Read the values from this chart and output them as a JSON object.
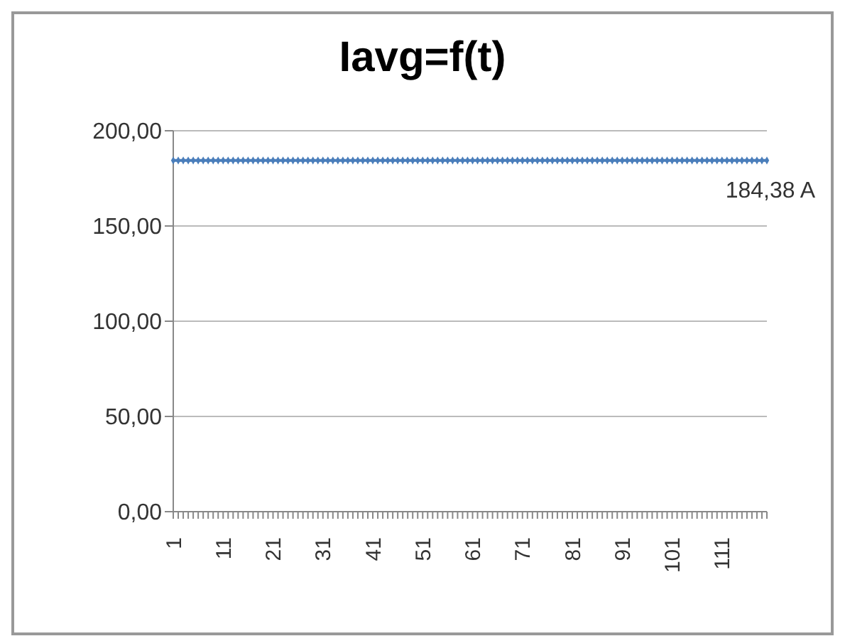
{
  "chart_data": {
    "type": "line",
    "title": "Iavg=f(t)",
    "categories": [
      "1",
      null,
      null,
      null,
      null,
      null,
      null,
      null,
      null,
      null,
      "11",
      null,
      null,
      null,
      null,
      null,
      null,
      null,
      null,
      null,
      "21",
      null,
      null,
      null,
      null,
      null,
      null,
      null,
      null,
      null,
      "31",
      null,
      null,
      null,
      null,
      null,
      null,
      null,
      null,
      null,
      "41",
      null,
      null,
      null,
      null,
      null,
      null,
      null,
      null,
      null,
      "51",
      null,
      null,
      null,
      null,
      null,
      null,
      null,
      null,
      null,
      "61",
      null,
      null,
      null,
      null,
      null,
      null,
      null,
      null,
      null,
      "71",
      null,
      null,
      null,
      null,
      null,
      null,
      null,
      null,
      null,
      "81",
      null,
      null,
      null,
      null,
      null,
      null,
      null,
      null,
      null,
      "91",
      null,
      null,
      null,
      null,
      null,
      null,
      null,
      null,
      null,
      "101",
      null,
      null,
      null,
      null,
      null,
      null,
      null,
      null,
      null,
      "111",
      null,
      null,
      null,
      null,
      null,
      null,
      null,
      null,
      null
    ],
    "series": [
      {
        "color": "#4a7ebb",
        "values": [
          184.38,
          184.38,
          184.38,
          184.38,
          184.38,
          184.38,
          184.38,
          184.38,
          184.38,
          184.38,
          184.38,
          184.38,
          184.38,
          184.38,
          184.38,
          184.38,
          184.38,
          184.38,
          184.38,
          184.38,
          184.38,
          184.38,
          184.38,
          184.38,
          184.38,
          184.38,
          184.38,
          184.38,
          184.38,
          184.38,
          184.38,
          184.38,
          184.38,
          184.38,
          184.38,
          184.38,
          184.38,
          184.38,
          184.38,
          184.38,
          184.38,
          184.38,
          184.38,
          184.38,
          184.38,
          184.38,
          184.38,
          184.38,
          184.38,
          184.38,
          184.38,
          184.38,
          184.38,
          184.38,
          184.38,
          184.38,
          184.38,
          184.38,
          184.38,
          184.38,
          184.38,
          184.38,
          184.38,
          184.38,
          184.38,
          184.38,
          184.38,
          184.38,
          184.38,
          184.38,
          184.38,
          184.38,
          184.38,
          184.38,
          184.38,
          184.38,
          184.38,
          184.38,
          184.38,
          184.38,
          184.38,
          184.38,
          184.38,
          184.38,
          184.38,
          184.38,
          184.38,
          184.38,
          184.38,
          184.38,
          184.38,
          184.38,
          184.38,
          184.38,
          184.38,
          184.38,
          184.38,
          184.38,
          184.38,
          184.38,
          184.38,
          184.38,
          184.38,
          184.38,
          184.38,
          184.38,
          184.38,
          184.38,
          184.38,
          184.38,
          184.38,
          184.38,
          184.38,
          184.38,
          184.38,
          184.38,
          184.38,
          184.38,
          184.38,
          184.38
        ],
        "value_labels": [
          null,
          null,
          null,
          null,
          null,
          null,
          null,
          null,
          null,
          null,
          null,
          null,
          null,
          null,
          null,
          null,
          null,
          null,
          null,
          null,
          null,
          null,
          null,
          null,
          null,
          null,
          null,
          null,
          null,
          null,
          null,
          null,
          null,
          null,
          null,
          null,
          null,
          null,
          null,
          null,
          null,
          null,
          null,
          null,
          null,
          null,
          null,
          null,
          null,
          null,
          null,
          null,
          null,
          null,
          null,
          null,
          null,
          null,
          null,
          null,
          null,
          null,
          null,
          null,
          null,
          null,
          null,
          null,
          null,
          null,
          null,
          null,
          null,
          null,
          null,
          null,
          null,
          null,
          null,
          null,
          null,
          null,
          null,
          null,
          null,
          null,
          null,
          null,
          null,
          null,
          null,
          null,
          null,
          null,
          null,
          null,
          null,
          null,
          null,
          null,
          null,
          null,
          null,
          null,
          null,
          null,
          null,
          null,
          null,
          null,
          null,
          null,
          null,
          null,
          null,
          null,
          null,
          null,
          null,
          "184,38 A"
        ]
      }
    ],
    "ylim": [
      0,
      200
    ],
    "yticks": [
      {
        "value": 0,
        "label": "0,00"
      },
      {
        "value": 50,
        "label": "50,00"
      },
      {
        "value": 100,
        "label": "100,00"
      },
      {
        "value": 150,
        "label": "150,00"
      },
      {
        "value": 200,
        "label": "200,00"
      }
    ],
    "grid": "y",
    "legend": false,
    "marker": "diamond"
  }
}
